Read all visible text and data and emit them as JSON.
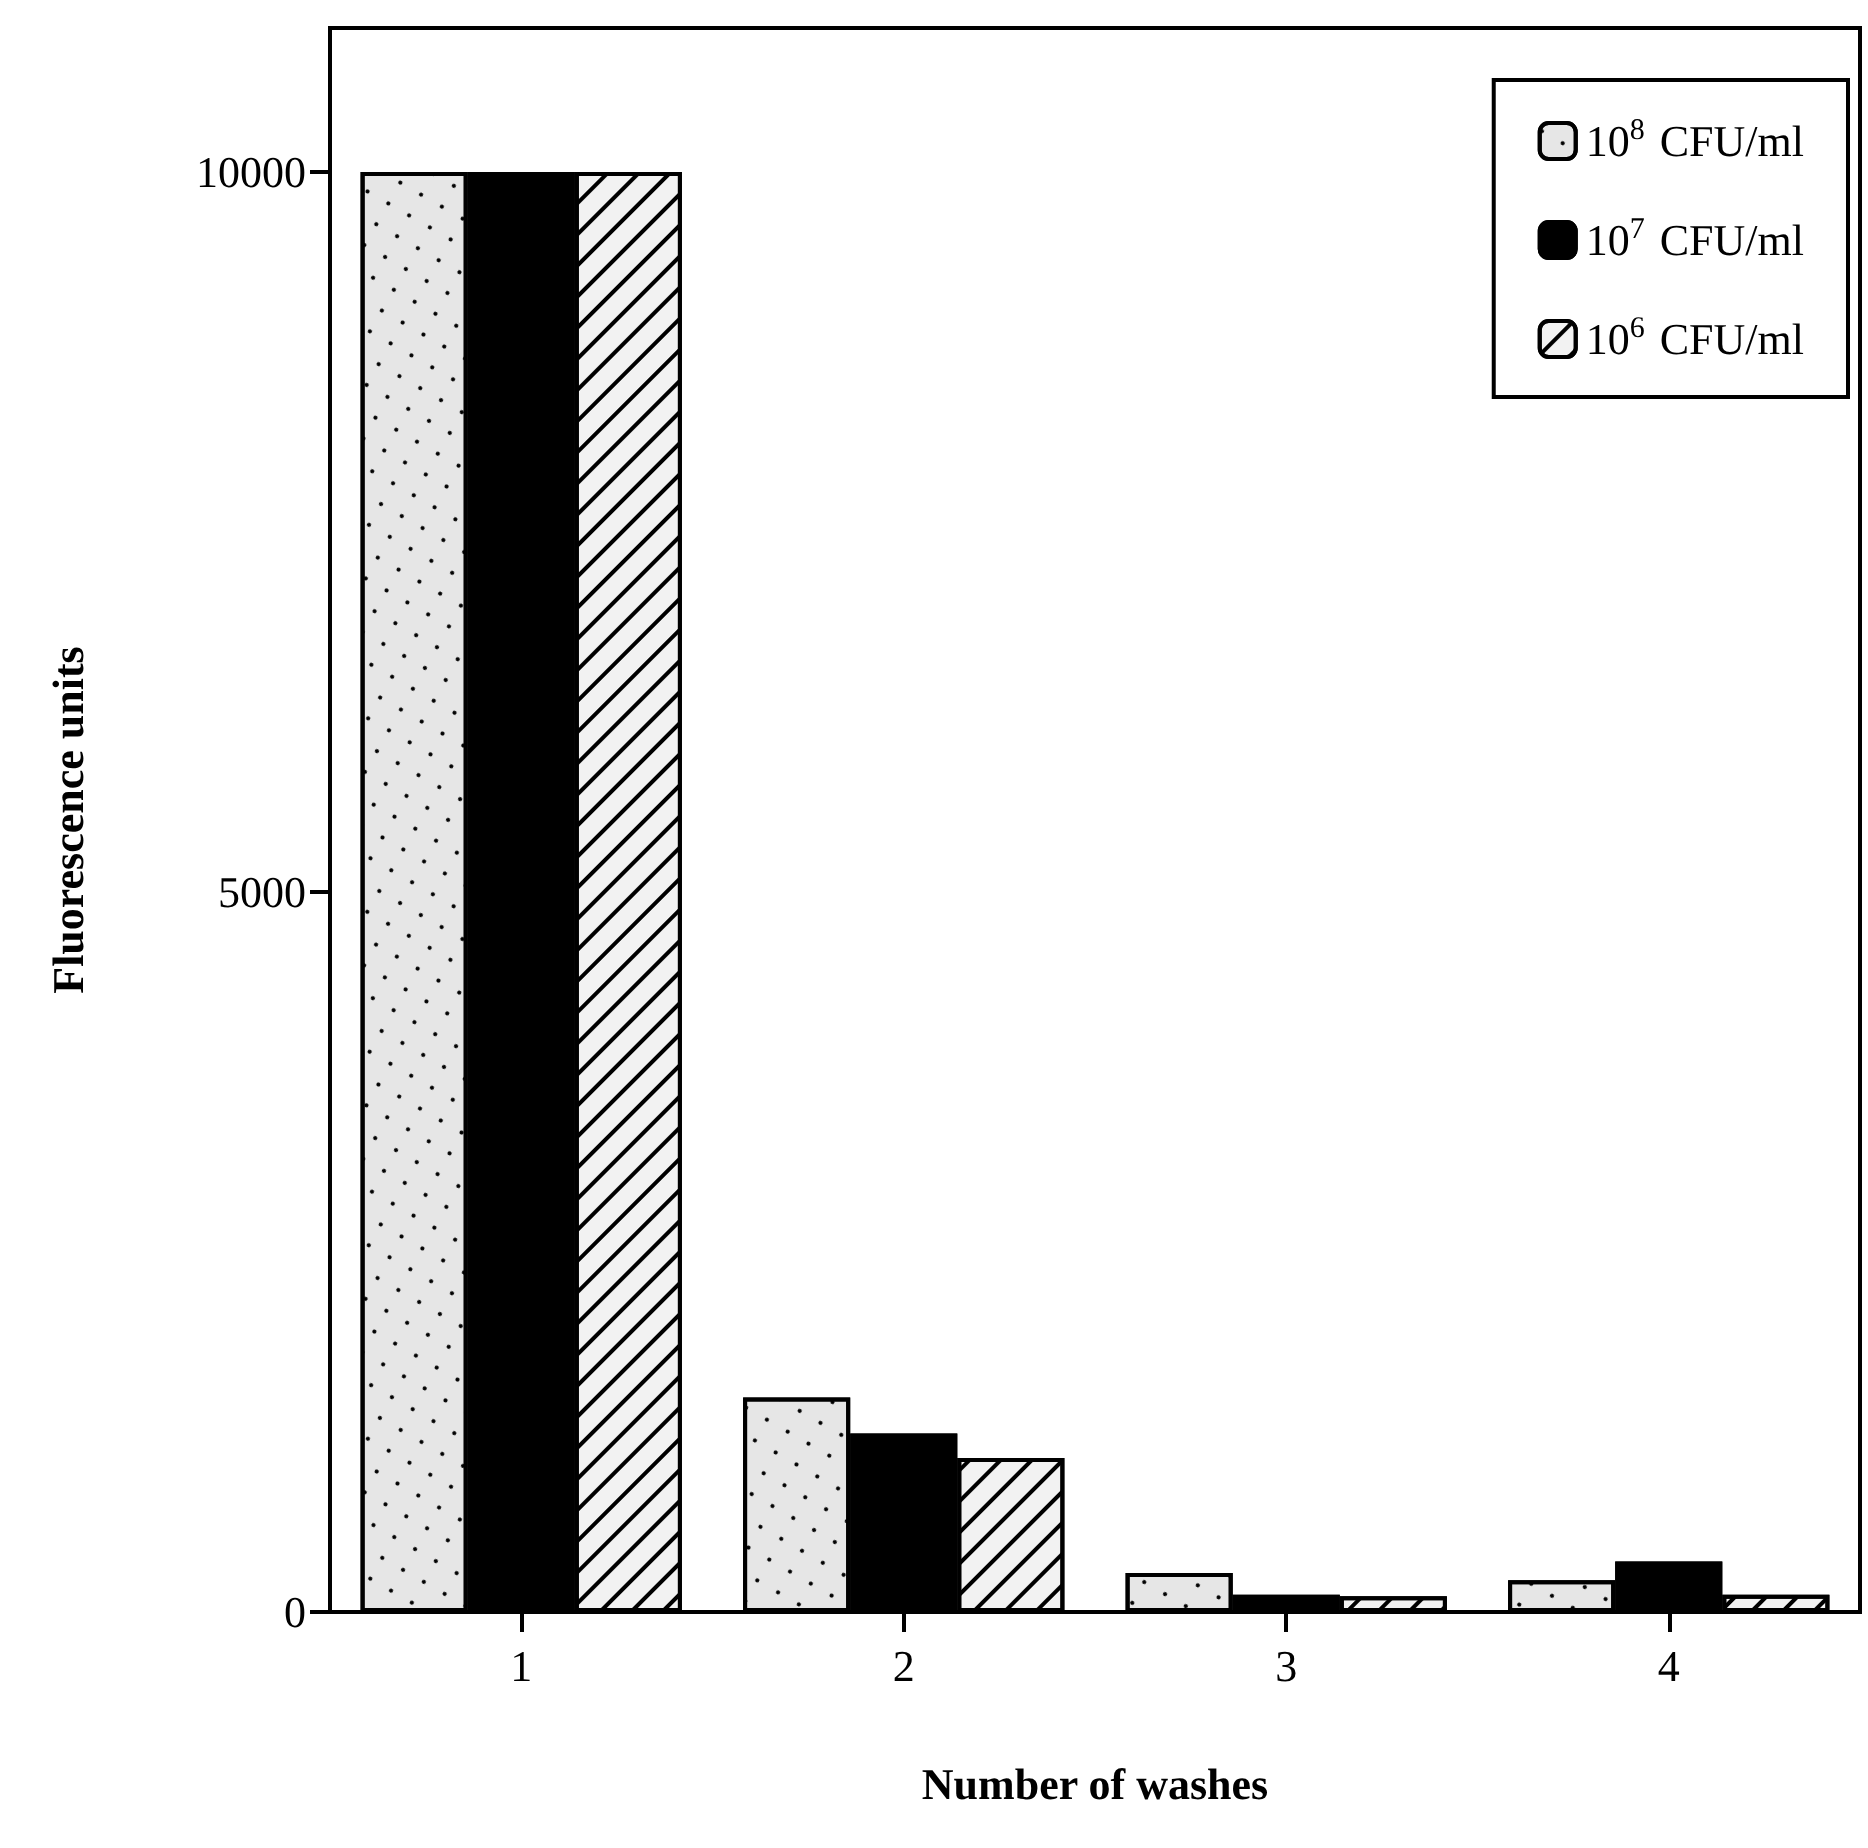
{
  "chart_data": {
    "type": "bar",
    "xlabel": "Number of washes",
    "ylabel": "Fluorescence units",
    "categories": [
      "1",
      "2",
      "3",
      "4"
    ],
    "series": [
      {
        "name": "10$^{8}$ CFU/ml",
        "color": "#e6e6e6",
        "values": [
          10000,
          1490,
          270,
          220
        ]
      },
      {
        "name": "10$^{7}$ CFU/ml",
        "color": "#000000",
        "values": [
          10000,
          1240,
          120,
          350
        ]
      },
      {
        "name": "10$^{6}$ CFU/ml",
        "color": "#f2f2f2",
        "values": [
          10000,
          1070,
          110,
          120
        ]
      }
    ],
    "ylim": [
      0,
      11000
    ],
    "yticks": [
      0,
      5000,
      10000
    ],
    "grid": false,
    "legend": "top right"
  }
}
